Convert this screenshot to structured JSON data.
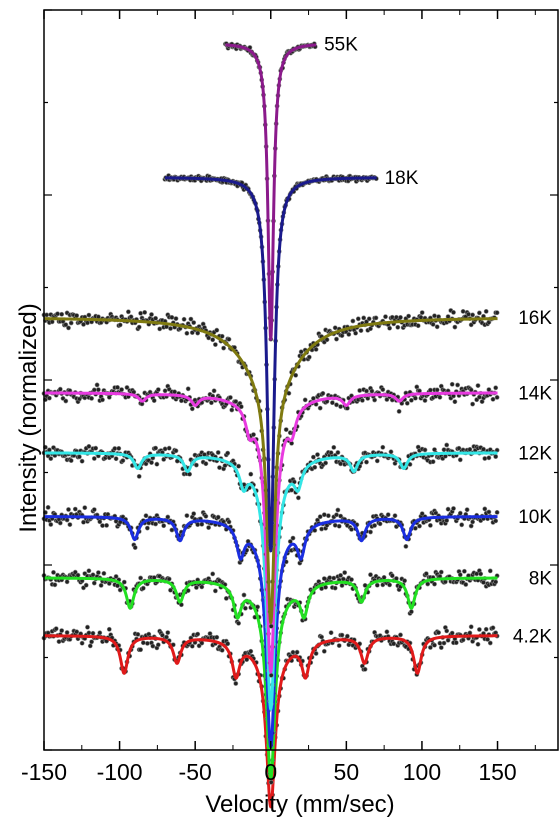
{
  "chart_data": {
    "type": "line",
    "xlabel": "Velocity (mm/sec)",
    "ylabel": "Intensity (normalized)",
    "xlim": [
      -150,
      190
    ],
    "x_ticks": [
      -150,
      -100,
      -50,
      0,
      50,
      100,
      150
    ],
    "x_tick_labels": [
      "-150",
      "-100",
      "-50",
      "0",
      "50",
      "100",
      "150"
    ],
    "y_tick_labels_shown": false,
    "grid": false,
    "legend": "none",
    "data_points_style": "black filled circles with white highlight",
    "series": [
      {
        "name": "55K",
        "color": "#8B1A8B",
        "kind": "singlet",
        "x_range": [
          -30,
          30
        ],
        "baseline": 0.955,
        "depth": 0.4,
        "hwhm": 2.2
      },
      {
        "name": "18K",
        "color": "#1A1A8C",
        "kind": "singlet",
        "x_range": [
          -70,
          70
        ],
        "baseline": 0.774,
        "depth": 0.505,
        "hwhm": 2.8
      },
      {
        "name": "16K",
        "color": "#7F7A10",
        "kind": "broad-singlet",
        "x_range": [
          -150,
          150
        ],
        "baseline": 0.585,
        "depth": 0.413,
        "hwhm": 3.0
      },
      {
        "name": "14K",
        "color": "#E83AE0",
        "kind": "sextet",
        "x_range": [
          -150,
          150
        ],
        "baseline": 0.483,
        "line_positions": [
          -85,
          -50,
          -14,
          0,
          14,
          50,
          85
        ],
        "line_depths": [
          0.01,
          0.013,
          0.03,
          0.355,
          0.03,
          0.013,
          0.01
        ]
      },
      {
        "name": "12K",
        "color": "#33E6E6",
        "kind": "sextet",
        "x_range": [
          -150,
          150
        ],
        "baseline": 0.402,
        "line_positions": [
          -88,
          -55,
          -18,
          0,
          18,
          55,
          88
        ],
        "line_depths": [
          0.02,
          0.022,
          0.03,
          0.325,
          0.03,
          0.022,
          0.02
        ]
      },
      {
        "name": "10K",
        "color": "#1A2EE0",
        "kind": "sextet",
        "x_range": [
          -150,
          150
        ],
        "baseline": 0.316,
        "line_positions": [
          -90,
          -60,
          -20,
          0,
          20,
          60,
          90
        ],
        "line_depths": [
          0.03,
          0.03,
          0.04,
          0.29,
          0.04,
          0.03,
          0.03
        ]
      },
      {
        "name": "8K",
        "color": "#22E022",
        "kind": "sextet",
        "x_range": [
          -150,
          150
        ],
        "baseline": 0.233,
        "line_positions": [
          -93,
          -60,
          -22,
          0,
          22,
          60,
          93
        ],
        "line_depths": [
          0.04,
          0.03,
          0.04,
          0.25,
          0.04,
          0.03,
          0.04
        ]
      },
      {
        "name": "4.2K",
        "color": "#E01A1A",
        "kind": "sextet",
        "x_range": [
          -150,
          150
        ],
        "baseline": 0.155,
        "line_positions": [
          -97,
          -62,
          -23,
          0,
          23,
          62,
          97
        ],
        "line_depths": [
          0.05,
          0.035,
          0.045,
          0.21,
          0.045,
          0.035,
          0.05
        ]
      }
    ]
  }
}
